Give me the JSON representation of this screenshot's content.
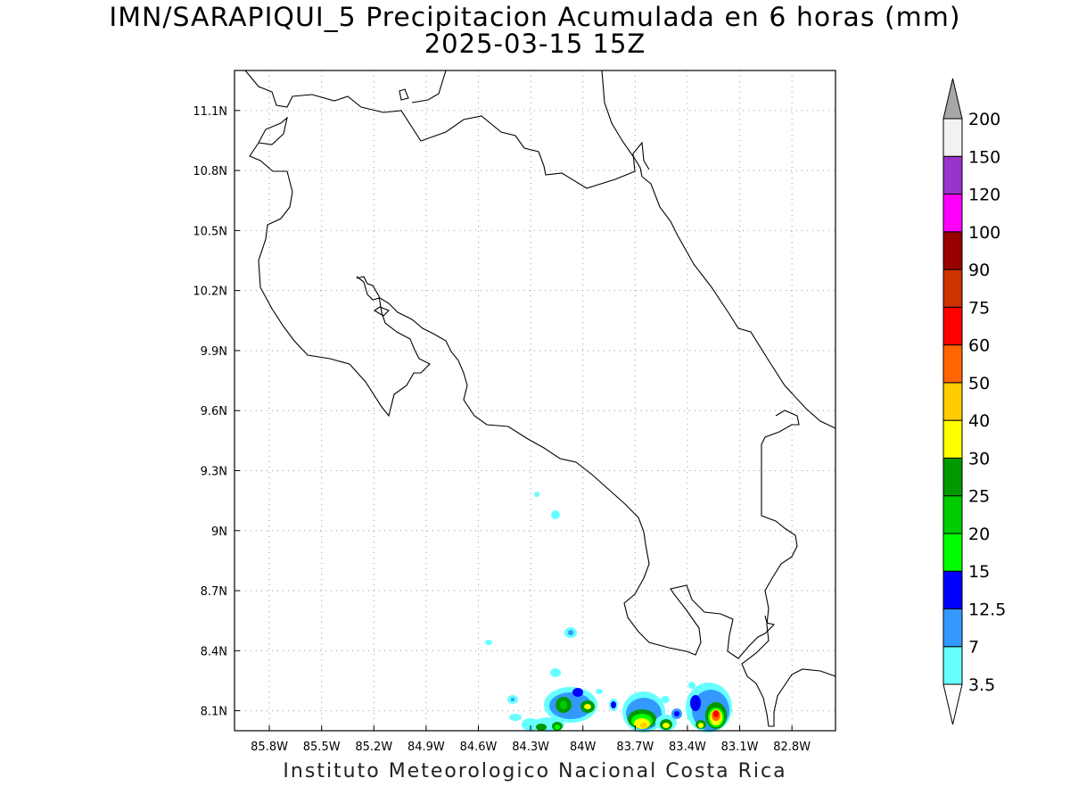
{
  "title_line1": "IMN/SARAPIQUI_5 Precipitacion Acumulada en 6 horas (mm)",
  "title_line2": "2025-03-15 15Z",
  "footer": "Instituto Meteorologico Nacional Costa Rica",
  "map": {
    "lon_range": [
      -86.0,
      -82.55
    ],
    "lat_range": [
      8.0,
      11.3
    ],
    "lon_ticks": [
      {
        "value": -85.8,
        "label": "85.8W"
      },
      {
        "value": -85.5,
        "label": "85.5W"
      },
      {
        "value": -85.2,
        "label": "85.2W"
      },
      {
        "value": -84.9,
        "label": "84.9W"
      },
      {
        "value": -84.6,
        "label": "84.6W"
      },
      {
        "value": -84.3,
        "label": "84.3W"
      },
      {
        "value": -84.0,
        "label": "84W"
      },
      {
        "value": -83.7,
        "label": "83.7W"
      },
      {
        "value": -83.4,
        "label": "83.4W"
      },
      {
        "value": -83.1,
        "label": "83.1W"
      },
      {
        "value": -82.8,
        "label": "82.8W"
      }
    ],
    "lat_ticks": [
      {
        "value": 8.1,
        "label": "8.1N"
      },
      {
        "value": 8.4,
        "label": "8.4N"
      },
      {
        "value": 8.7,
        "label": "8.7N"
      },
      {
        "value": 9.0,
        "label": "9N"
      },
      {
        "value": 9.3,
        "label": "9.3N"
      },
      {
        "value": 9.6,
        "label": "9.6N"
      },
      {
        "value": 9.9,
        "label": "9.9N"
      },
      {
        "value": 10.2,
        "label": "10.2N"
      },
      {
        "value": 10.5,
        "label": "10.5N"
      },
      {
        "value": 10.8,
        "label": "10.8N"
      },
      {
        "value": 11.1,
        "label": "11.1N"
      }
    ],
    "grid": "dotted"
  },
  "colorbar": {
    "levels": [
      "3.5",
      "7",
      "12.5",
      "15",
      "20",
      "25",
      "30",
      "40",
      "50",
      "60",
      "75",
      "90",
      "100",
      "120",
      "150",
      "200"
    ],
    "colors": [
      "#66ffff",
      "#3399ff",
      "#0000ff",
      "#00ff00",
      "#00cc00",
      "#009900",
      "#ffff00",
      "#ffcc00",
      "#ff6600",
      "#ff0000",
      "#cc3300",
      "#990000",
      "#ff00ff",
      "#9933cc",
      "#f2f2f2"
    ],
    "over_color": "#a6a6a6",
    "under_color": "#ffffff"
  }
}
